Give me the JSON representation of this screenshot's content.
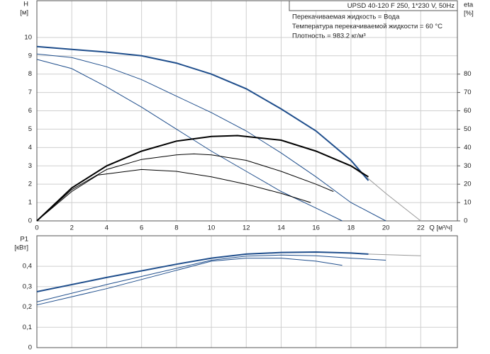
{
  "chart_data": [
    {
      "type": "line",
      "title": "UPSD 40-120 F 250, 1*230 V, 50Hz",
      "annotations": [
        "Перекачиваемая жидкость = Вода",
        "Температура перекачиваемой жидкости = 60 °C",
        "Плотность = 983.2 кг/м³"
      ],
      "ylabel": "H",
      "yunit": "[м]",
      "y2label": "eta",
      "y2unit": "[%]",
      "xlabel": "Q [м³/ч]",
      "xlim": [
        0,
        24.1
      ],
      "xticks": [
        0,
        2,
        4,
        6,
        8,
        10,
        12,
        14,
        16,
        18,
        20,
        22
      ],
      "ylim": [
        0,
        12
      ],
      "yticks": [
        0,
        1,
        2,
        3,
        4,
        5,
        6,
        7,
        8,
        9,
        10
      ],
      "y2lim": [
        0,
        120
      ],
      "y2ticks": [
        0,
        10,
        20,
        30,
        40,
        50,
        60,
        70,
        80
      ],
      "grid": true,
      "series": [
        {
          "color": "#999999",
          "width": 1,
          "x": [
            18,
            19,
            20,
            21,
            22
          ],
          "values": [
            3.0,
            2.3,
            1.5,
            0.75,
            0
          ]
        },
        {
          "color": "#1f4e8c",
          "width": 2,
          "x": [
            0,
            2,
            4,
            6,
            8,
            10,
            12,
            14,
            16,
            18,
            19
          ],
          "values": [
            9.5,
            9.35,
            9.2,
            9.0,
            8.6,
            8.0,
            7.2,
            6.1,
            4.9,
            3.3,
            2.2
          ]
        },
        {
          "color": "#1f4e8c",
          "width": 1,
          "x": [
            0,
            2,
            4,
            6,
            8,
            10,
            12,
            14,
            16,
            18,
            20
          ],
          "values": [
            9.1,
            8.9,
            8.4,
            7.7,
            6.8,
            5.9,
            4.9,
            3.7,
            2.4,
            1.0,
            0
          ]
        },
        {
          "color": "#1f4e8c",
          "width": 1,
          "x": [
            0,
            2,
            4,
            6,
            8,
            10,
            12,
            14,
            16,
            17.5
          ],
          "values": [
            8.8,
            8.3,
            7.3,
            6.2,
            5.0,
            3.8,
            2.7,
            1.6,
            0.7,
            0
          ]
        },
        {
          "color": "#000000",
          "width": 2,
          "axis": "y2",
          "x": [
            0,
            2,
            4,
            6,
            8,
            10,
            11.5,
            14,
            16,
            18,
            19
          ],
          "values": [
            0,
            18,
            30,
            38,
            43.5,
            46,
            46.5,
            44,
            38,
            30,
            24
          ]
        },
        {
          "color": "#000000",
          "width": 1,
          "axis": "y2",
          "x": [
            0,
            2,
            4,
            6,
            8,
            9,
            10,
            12,
            14,
            16,
            17
          ],
          "values": [
            0,
            17,
            28,
            33.5,
            36,
            36.5,
            36,
            33,
            27,
            20,
            16
          ]
        },
        {
          "color": "#000000",
          "width": 1,
          "axis": "y2",
          "x": [
            0,
            2,
            3.5,
            6,
            8,
            10,
            12,
            14,
            15.7
          ],
          "values": [
            0,
            16,
            25,
            28,
            27,
            24,
            20,
            15,
            10
          ]
        }
      ]
    },
    {
      "type": "line",
      "ylabel": "P1",
      "yunit": "[кВт]",
      "xlim": [
        0,
        24.1
      ],
      "xticks": [
        0,
        2,
        4,
        6,
        8,
        10,
        12,
        14,
        16,
        18,
        20,
        22
      ],
      "ylim": [
        0,
        0.55
      ],
      "yticks": [
        0,
        {
          "value": 0.1,
          "label": "0,1"
        },
        {
          "value": 0.2,
          "label": "0,2"
        },
        {
          "value": 0.3,
          "label": "0,3"
        },
        {
          "value": 0.4,
          "label": "0,4"
        }
      ],
      "grid": true,
      "series": [
        {
          "color": "#999999",
          "width": 1,
          "x": [
            19,
            22
          ],
          "values": [
            0.46,
            0.452
          ]
        },
        {
          "color": "#1f4e8c",
          "width": 2,
          "x": [
            0,
            4,
            8,
            10,
            12,
            14,
            16,
            18,
            19
          ],
          "values": [
            0.275,
            0.345,
            0.41,
            0.44,
            0.46,
            0.468,
            0.47,
            0.465,
            0.46
          ]
        },
        {
          "color": "#1f4e8c",
          "width": 1,
          "x": [
            0,
            4,
            8,
            10,
            12,
            14,
            16,
            18,
            20
          ],
          "values": [
            0.225,
            0.31,
            0.39,
            0.43,
            0.45,
            0.455,
            0.452,
            0.44,
            0.43
          ]
        },
        {
          "color": "#1f4e8c",
          "width": 1,
          "x": [
            0,
            4,
            8,
            10,
            12,
            14,
            16,
            17.5
          ],
          "values": [
            0.21,
            0.29,
            0.38,
            0.425,
            0.44,
            0.44,
            0.425,
            0.405
          ]
        }
      ]
    }
  ]
}
